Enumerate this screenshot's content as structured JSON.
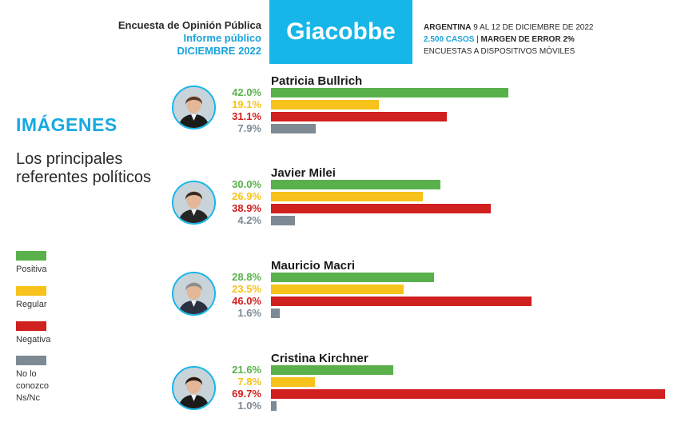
{
  "header": {
    "title": "Encuesta de Opinión Pública",
    "subtitle": "Informe público",
    "date": "DICIEMBRE 2022",
    "brand": "Giacobbe",
    "meta_line1_bold": "ARGENTINA",
    "meta_line1_rest": " 9 AL 12 DE DICIEMBRE DE 2022",
    "meta_line2_cases": "2.500 CASOS",
    "meta_line2_sep": " | ",
    "meta_line2_error": "MARGEN DE ERROR 2%",
    "meta_line3": "ENCUESTAS A DISPOSITIVOS MÓVILES"
  },
  "section_title": "IMÁGENES",
  "section_subtitle": "Los principales referentes políticos",
  "colors": {
    "positiva": "#5ab14c",
    "regular": "#f7c21b",
    "negativa": "#d0201f",
    "no_conozco": "#7d8a93",
    "accent": "#17b6e8"
  },
  "legend": [
    {
      "label": "Positiva",
      "color_key": "positiva"
    },
    {
      "label": "Regular",
      "color_key": "regular"
    },
    {
      "label": "Negativa",
      "color_key": "negativa"
    },
    {
      "label": "No lo conozco\nNs/Nc",
      "color_key": "no_conozco"
    }
  ],
  "chart_data": {
    "type": "bar",
    "orientation": "horizontal",
    "series_names": [
      "Positiva",
      "Regular",
      "Negativa",
      "No lo conozco Ns/Nc"
    ],
    "xlim": [
      0,
      70
    ],
    "groups": [
      {
        "name": "Patricia Bullrich",
        "values": [
          42.0,
          19.1,
          31.1,
          7.9
        ],
        "labels": [
          "42.0%",
          "19.1%",
          "31.1%",
          "7.9%"
        ]
      },
      {
        "name": "Javier Milei",
        "values": [
          30.0,
          26.9,
          38.9,
          4.2
        ],
        "labels": [
          "30.0%",
          "26.9%",
          "38.9%",
          "4.2%"
        ]
      },
      {
        "name": "Mauricio Macri",
        "values": [
          28.8,
          23.5,
          46.0,
          1.6
        ],
        "labels": [
          "28.8%",
          "23.5%",
          "46.0%",
          "1.6%"
        ]
      },
      {
        "name": "Cristina Kirchner",
        "values": [
          21.6,
          7.8,
          69.7,
          1.0
        ],
        "labels": [
          "21.6%",
          "7.8%",
          "69.7%",
          "1.0%"
        ]
      }
    ]
  }
}
